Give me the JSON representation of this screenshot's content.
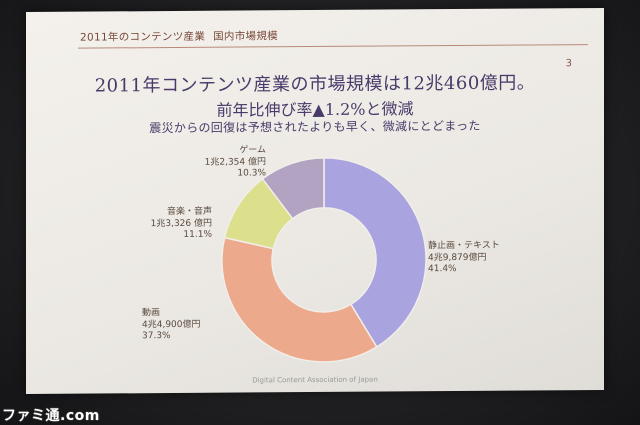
{
  "header": {
    "title": "2011年のコンテンツ産業",
    "subtitle": "国内市場規模",
    "page_number": "3"
  },
  "headline": {
    "line1": "2011年コンテンツ産業の市場規模は12兆460億円。",
    "line2_prefix": "前年比伸び率",
    "line2_triangle": "▲",
    "line2_value": "1.2%",
    "line2_suffix": "と微減",
    "line3": "震災からの回復は予想されたよりも早く、微減にとどまった"
  },
  "chart_data": {
    "type": "pie",
    "style": "donut",
    "slices": [
      {
        "name": "静止画・テキスト",
        "amount": "4兆9,879億円",
        "percent": 41.4,
        "percent_label": "41.4%",
        "color": "#a9a3e0"
      },
      {
        "name": "動画",
        "amount": "4兆4,900億円",
        "percent": 37.3,
        "percent_label": "37.3%",
        "color": "#eda98b"
      },
      {
        "name": "音楽・音声",
        "amount": "1兆3,326 億円",
        "percent": 11.1,
        "percent_label": "11.1%",
        "color": "#dcdf8c"
      },
      {
        "name": "ゲーム",
        "amount": "1兆2,354 億円",
        "percent": 10.3,
        "percent_label": "10.3%",
        "color": "#b3a3c2"
      }
    ]
  },
  "footer": {
    "credit": "Digital Content Association of Japan"
  },
  "watermark": "ファミ通.com"
}
